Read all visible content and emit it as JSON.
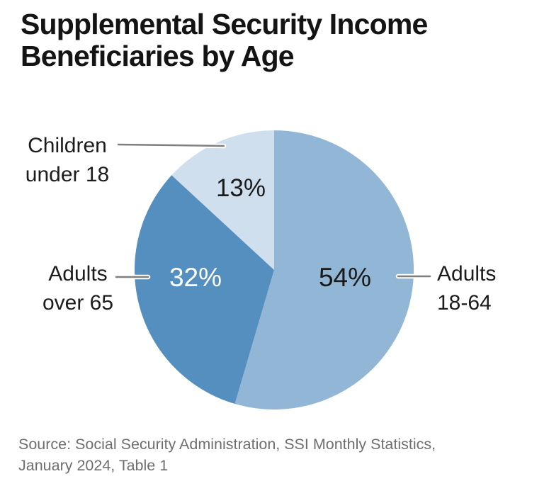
{
  "header": {
    "title": "Supplemental Security Income\nBeneficiaries by Age"
  },
  "chart_data": {
    "type": "pie",
    "title": "Supplemental Security Income Beneficiaries by Age",
    "unit": "%",
    "direction": "clockwise",
    "start_angle_deg": 0,
    "legend": "none",
    "slices": [
      {
        "label": "Adults 18-64",
        "label_wrapped": "Adults\n18-64",
        "value": 54,
        "display": "54%",
        "color": "#92b6d5",
        "text_color": "#1a1a1a"
      },
      {
        "label": "Adults over 65",
        "label_wrapped": "Adults\nover 65",
        "value": 32,
        "display": "32%",
        "color": "#548fbf",
        "text_color": "#ffffff"
      },
      {
        "label": "Children under 18",
        "label_wrapped": "Children\nunder 18",
        "value": 13,
        "display": "13%",
        "color": "#cfdfee",
        "text_color": "#1a1a1a"
      }
    ],
    "source": "Source: Social Security Administration, SSI Monthly Statistics,\nJanuary 2024, Table 1"
  }
}
